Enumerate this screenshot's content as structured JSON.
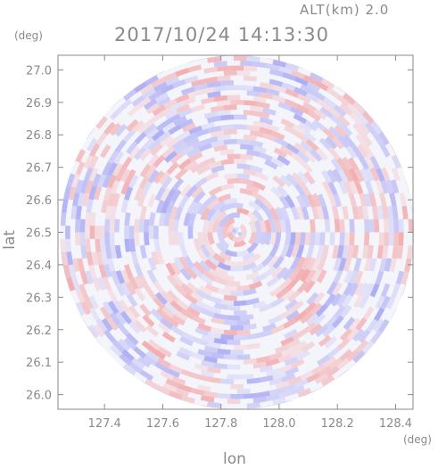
{
  "header": {
    "altitude_label": "ALT(km) 2.0",
    "timestamp": "2017/10/24 14:13:30"
  },
  "chart_data": {
    "type": "heatmap",
    "title": "2017/10/24 14:13:30",
    "subtitle": "ALT(km) 2.0",
    "xlabel": "lon",
    "ylabel": "lat",
    "x_unit": "(deg)",
    "y_unit": "(deg)",
    "xlim": [
      127.24,
      128.46
    ],
    "ylim": [
      25.955,
      27.045
    ],
    "x_ticks": [
      "127.4",
      "127.6",
      "127.8",
      "128.0",
      "128.2",
      "128.4"
    ],
    "y_ticks": [
      "26.0",
      "26.1",
      "26.2",
      "26.3",
      "26.4",
      "26.5",
      "26.6",
      "26.7",
      "26.8",
      "26.9",
      "27.0"
    ],
    "center": {
      "lon": 127.855,
      "lat": 26.5
    },
    "radius_lat_deg": 0.545,
    "colors": {
      "positive": "#f29a9a",
      "negative": "#9a9af2",
      "axis": "#8a8a8a",
      "text": "#8a8a8a"
    }
  }
}
